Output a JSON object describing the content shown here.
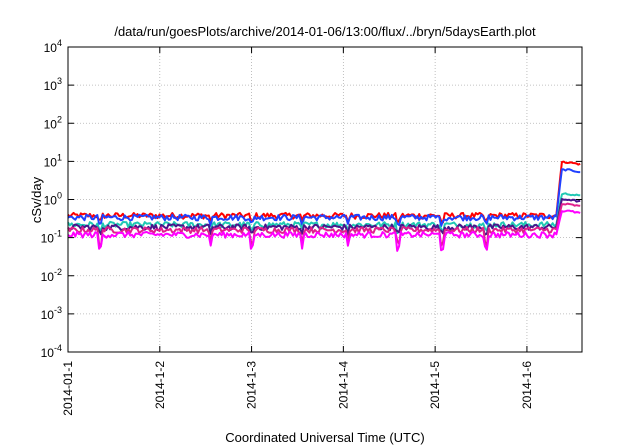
{
  "chart_data": {
    "type": "line",
    "title": "/data/run/goesPlots/archive/2014-01-06/13:00/flux/../bryn/5daysEarth.plot",
    "xlabel": "Coordinated Universal Time (UTC)",
    "ylabel": "cSv/day",
    "y_scale": "log",
    "ylim_exponents": [
      -4,
      4
    ],
    "xlim": [
      0,
      5.6
    ],
    "x_tick_labels": [
      "2014-01-1",
      "2014-1-2",
      "2014-1-3",
      "2014-1-4",
      "2014-1-5",
      "2014-1-6"
    ],
    "x_tick_positions": [
      0,
      1,
      2,
      3,
      4,
      5
    ],
    "y_tick_exponents": [
      -4,
      -3,
      -2,
      -1,
      0,
      1,
      2,
      3,
      4
    ],
    "grid": true,
    "series": [
      {
        "color": "#ff0000",
        "baseline": 0.38,
        "end_value": 9.5
      },
      {
        "color": "#2040ff",
        "baseline": 0.34,
        "end_value": 6.0
      },
      {
        "color": "#20c8b4",
        "baseline": 0.22,
        "end_value": 1.4
      },
      {
        "color": "#4a148c",
        "baseline": 0.19,
        "end_value": 1.0
      },
      {
        "color": "#e0208c",
        "baseline": 0.16,
        "end_value": 0.75
      },
      {
        "color": "#ff00ff",
        "baseline": 0.12,
        "end_value": 0.5
      }
    ]
  }
}
